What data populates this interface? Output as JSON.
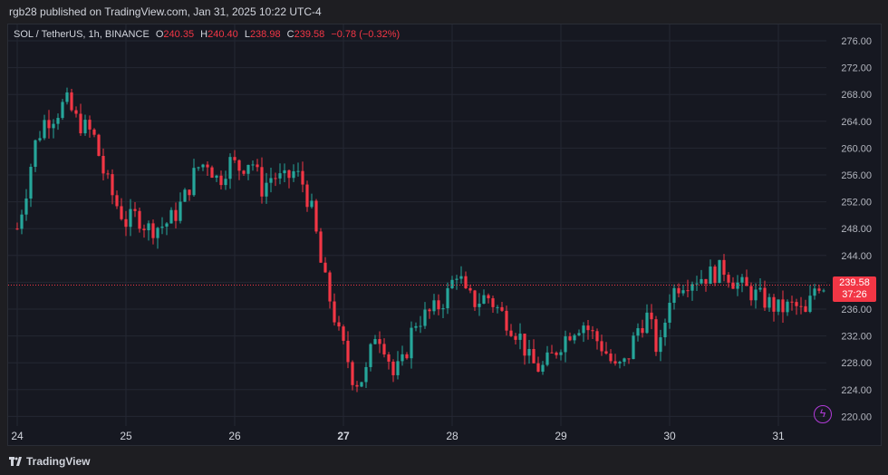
{
  "header": {
    "publisher": "rgb28 published on TradingView.com, Jan 31, 2025 10:22 UTC-4"
  },
  "legend": {
    "symbol": "SOL / TetherUS, 1h, BINANCE",
    "open_label": "O",
    "open": "240.35",
    "high_label": "H",
    "high": "240.40",
    "low_label": "L",
    "low": "238.98",
    "close_label": "C",
    "close": "239.58",
    "change": "−0.78 (−0.32%)"
  },
  "price_tag": {
    "price": "239.58",
    "countdown": "37:26"
  },
  "footer": {
    "brand": "TradingView"
  },
  "colors": {
    "up": "#26a69a",
    "down": "#f23645",
    "background": "#161821",
    "grid": "#242733"
  },
  "icons": {
    "brand": "tradingview-logo-icon",
    "alert": "lightning-icon"
  },
  "chart_data": {
    "type": "candlestick",
    "symbol": "SOL / TetherUS",
    "interval": "1h",
    "exchange": "BINANCE",
    "ylim": [
      218,
      278
    ],
    "y_ticks": [
      "276.00",
      "272.00",
      "268.00",
      "264.00",
      "260.00",
      "256.00",
      "252.00",
      "248.00",
      "244.00",
      "240.00",
      "236.00",
      "232.00",
      "228.00",
      "224.00",
      "220.00"
    ],
    "x_ticks": [
      "24",
      "25",
      "26",
      "27",
      "28",
      "29",
      "30",
      "31"
    ],
    "x_bold": "27",
    "last_price": 239.58,
    "close_path": [
      [
        24.0,
        248.0
      ],
      [
        24.1,
        255.0
      ],
      [
        24.15,
        260.0
      ],
      [
        24.25,
        264.0
      ],
      [
        24.35,
        265.0
      ],
      [
        24.45,
        267.0
      ],
      [
        24.55,
        264.0
      ],
      [
        24.7,
        262.0
      ],
      [
        24.8,
        256.0
      ],
      [
        24.9,
        252.0
      ],
      [
        25.0,
        249.0
      ],
      [
        25.1,
        250.0
      ],
      [
        25.2,
        248.0
      ],
      [
        25.35,
        248.5
      ],
      [
        25.45,
        250.0
      ],
      [
        25.55,
        253.0
      ],
      [
        25.65,
        257.0
      ],
      [
        25.75,
        258.0
      ],
      [
        25.85,
        255.0
      ],
      [
        25.95,
        258.0
      ],
      [
        26.05,
        257.0
      ],
      [
        26.15,
        258.5
      ],
      [
        26.25,
        254.0
      ],
      [
        26.35,
        256.0
      ],
      [
        26.45,
        255.0
      ],
      [
        26.55,
        256.5
      ],
      [
        26.62,
        255.0
      ],
      [
        26.72,
        250.0
      ],
      [
        26.8,
        242.0
      ],
      [
        26.9,
        236.0
      ],
      [
        26.96,
        232.0
      ],
      [
        27.05,
        228.0
      ],
      [
        27.1,
        225.0
      ],
      [
        27.2,
        226.0
      ],
      [
        27.3,
        233.0
      ],
      [
        27.4,
        230.0
      ],
      [
        27.45,
        226.0
      ],
      [
        27.55,
        228.0
      ],
      [
        27.65,
        234.0
      ],
      [
        27.75,
        235.0
      ],
      [
        27.85,
        236.0
      ],
      [
        27.95,
        238.0
      ],
      [
        28.05,
        242.0
      ],
      [
        28.12,
        238.0
      ],
      [
        28.22,
        237.0
      ],
      [
        28.32,
        238.0
      ],
      [
        28.42,
        236.0
      ],
      [
        28.52,
        234.0
      ],
      [
        28.62,
        232.0
      ],
      [
        28.72,
        228.0
      ],
      [
        28.82,
        227.0
      ],
      [
        28.92,
        229.0
      ],
      [
        29.0,
        231.0
      ],
      [
        29.1,
        233.0
      ],
      [
        29.2,
        234.0
      ],
      [
        29.3,
        232.0
      ],
      [
        29.4,
        230.0
      ],
      [
        29.5,
        227.0
      ],
      [
        29.6,
        228.0
      ],
      [
        29.7,
        233.0
      ],
      [
        29.8,
        235.0
      ],
      [
        29.9,
        229.0
      ],
      [
        30.0,
        238.0
      ],
      [
        30.1,
        240.0
      ],
      [
        30.2,
        240.5
      ],
      [
        30.35,
        241.0
      ],
      [
        30.5,
        242.0
      ],
      [
        30.6,
        240.0
      ],
      [
        30.7,
        239.0
      ],
      [
        30.8,
        238.0
      ],
      [
        30.9,
        237.0
      ],
      [
        31.0,
        236.0
      ],
      [
        31.15,
        236.5
      ],
      [
        31.25,
        235.0
      ],
      [
        31.35,
        240.0
      ],
      [
        31.42,
        239.58
      ]
    ]
  }
}
